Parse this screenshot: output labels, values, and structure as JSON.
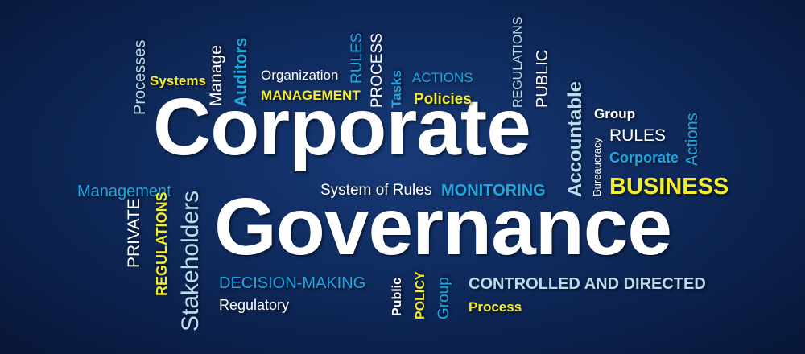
{
  "title": {
    "line1": "Corporate",
    "line2": "Governance"
  },
  "colors": {
    "background": "#0f2a5c",
    "white": "#ffffff",
    "light_blue": "#b9dcef",
    "blue": "#1ea7e1",
    "yellow": "#f6ec2a"
  },
  "words": {
    "processes": "Processes",
    "systems": "Systems",
    "manage": "Manage",
    "auditors": "Auditors",
    "organization": "Organization",
    "management_caps": "MANAGEMENT",
    "rules_vertical": "RULES",
    "process_caps": "PROCESS",
    "tasks": "Tasks",
    "actions_caps": "ACTIONS",
    "policies": "Policies",
    "regulations_vertical": "REGULATIONS",
    "public_caps": "PUBLIC",
    "accountable": "Accountable",
    "group_right": "Group",
    "bureaucracy": "Bureaucracy",
    "rules_right": "RULES",
    "corporate_small": "Corporate",
    "actions_right": "Actions",
    "business": "BUSINESS",
    "management_left": "Management",
    "system_of_rules": "System of Rules",
    "monitoring": "MONITORING",
    "private": "PRIVATE",
    "regulations_yellow": "REGULATIONS",
    "stakeholders": "Stakeholders",
    "decision_making": "DECISION-MAKING",
    "regulatory": "Regulatory",
    "public_small": "Public",
    "policy": "POLICY",
    "group_bottom": "Group",
    "controlled_and_directed": "CONTROLLED AND DIRECTED",
    "process_bottom": "Process"
  }
}
